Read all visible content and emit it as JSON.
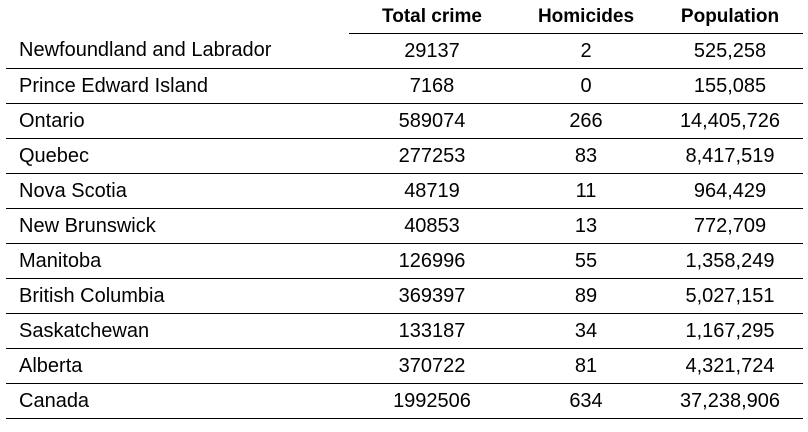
{
  "table": {
    "columns": [
      "",
      "Total crime",
      "Homicides",
      "Population"
    ],
    "rows": [
      {
        "region": "Newfoundland and Labrador",
        "total_crime": "29137",
        "homicides": "2",
        "population": "525,258"
      },
      {
        "region": "Prince Edward Island",
        "total_crime": "7168",
        "homicides": "0",
        "population": "155,085"
      },
      {
        "region": "Ontario",
        "total_crime": "589074",
        "homicides": "266",
        "population": "14,405,726"
      },
      {
        "region": "Quebec",
        "total_crime": "277253",
        "homicides": "83",
        "population": "8,417,519"
      },
      {
        "region": "Nova Scotia",
        "total_crime": "48719",
        "homicides": "11",
        "population": "964,429"
      },
      {
        "region": "New Brunswick",
        "total_crime": "40853",
        "homicides": "13",
        "population": "772,709"
      },
      {
        "region": "Manitoba",
        "total_crime": "126996",
        "homicides": "55",
        "population": "1,358,249"
      },
      {
        "region": "British Columbia",
        "total_crime": "369397",
        "homicides": "89",
        "population": "5,027,151"
      },
      {
        "region": "Saskatchewan",
        "total_crime": "133187",
        "homicides": "34",
        "population": "1,167,295"
      },
      {
        "region": "Alberta",
        "total_crime": "370722",
        "homicides": "81",
        "population": "4,321,724"
      },
      {
        "region": "Canada",
        "total_crime": "1992506",
        "homicides": "634",
        "population": "37,238,906"
      }
    ]
  }
}
